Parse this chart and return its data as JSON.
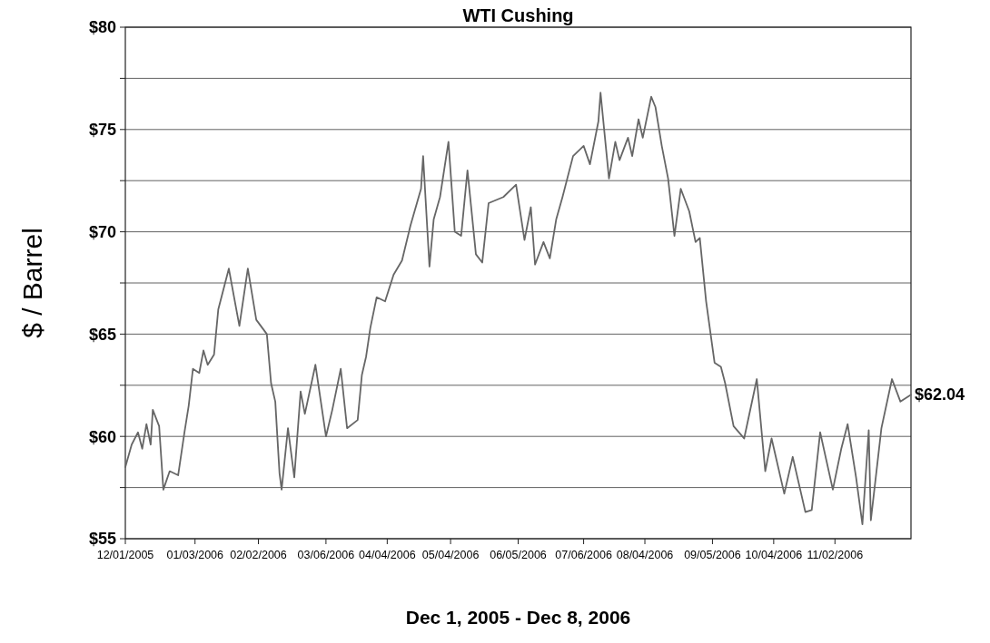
{
  "chart_data": {
    "type": "line",
    "title": "WTI Cushing",
    "xlabel": "Dec 1, 2005 - Dec 8, 2006",
    "ylabel": "$ / Barrel",
    "x": [
      "2005-12-01",
      "2005-12-04",
      "2005-12-07",
      "2005-12-09",
      "2005-12-11",
      "2005-12-13",
      "2005-12-14",
      "2005-12-17",
      "2005-12-19",
      "2005-12-22",
      "2005-12-26",
      "2005-12-29",
      "2005-12-31",
      "2006-01-02",
      "2006-01-05",
      "2006-01-07",
      "2006-01-09",
      "2006-01-12",
      "2006-01-14",
      "2006-01-19",
      "2006-01-24",
      "2006-01-28",
      "2006-02-01",
      "2006-02-06",
      "2006-02-08",
      "2006-02-10",
      "2006-02-12",
      "2006-02-13",
      "2006-02-16",
      "2006-02-19",
      "2006-02-22",
      "2006-02-24",
      "2006-03-01",
      "2006-03-06",
      "2006-03-09",
      "2006-03-13",
      "2006-03-16",
      "2006-03-21",
      "2006-03-23",
      "2006-03-25",
      "2006-03-27",
      "2006-03-30",
      "2006-04-03",
      "2006-04-07",
      "2006-04-11",
      "2006-04-15",
      "2006-04-20",
      "2006-04-21",
      "2006-04-24",
      "2006-04-26",
      "2006-04-29",
      "2006-05-03",
      "2006-05-06",
      "2006-05-09",
      "2006-05-12",
      "2006-05-16",
      "2006-05-19",
      "2006-05-22",
      "2006-05-29",
      "2006-06-04",
      "2006-06-08",
      "2006-06-11",
      "2006-06-13",
      "2006-06-17",
      "2006-06-20",
      "2006-06-23",
      "2006-06-26",
      "2006-07-01",
      "2006-07-06",
      "2006-07-09",
      "2006-07-13",
      "2006-07-14",
      "2006-07-18",
      "2006-07-21",
      "2006-07-23",
      "2006-07-27",
      "2006-07-29",
      "2006-08-01",
      "2006-08-03",
      "2006-08-07",
      "2006-08-09",
      "2006-08-12",
      "2006-08-15",
      "2006-08-18",
      "2006-08-21",
      "2006-08-25",
      "2006-08-28",
      "2006-08-30",
      "2006-09-02",
      "2006-09-06",
      "2006-09-09",
      "2006-09-11",
      "2006-09-15",
      "2006-09-20",
      "2006-09-26",
      "2006-09-30",
      "2006-10-03",
      "2006-10-09",
      "2006-10-13",
      "2006-10-19",
      "2006-10-22",
      "2006-10-26",
      "2006-11-01",
      "2006-11-05",
      "2006-11-08",
      "2006-11-12",
      "2006-11-15",
      "2006-11-18",
      "2006-11-19",
      "2006-11-24",
      "2006-11-29",
      "2006-12-03",
      "2006-12-08"
    ],
    "series": [
      {
        "color": "#666666",
        "values": [
          58.5,
          59.6,
          60.2,
          59.4,
          60.6,
          59.6,
          61.3,
          60.5,
          57.4,
          58.3,
          58.1,
          60.2,
          61.5,
          63.3,
          63.1,
          64.2,
          63.5,
          64.0,
          66.2,
          68.2,
          65.4,
          68.2,
          65.7,
          65.0,
          62.6,
          61.7,
          58.2,
          57.4,
          60.4,
          58.0,
          62.2,
          61.1,
          63.5,
          60.0,
          61.3,
          63.3,
          60.4,
          60.8,
          63.0,
          63.9,
          65.3,
          66.8,
          66.6,
          67.9,
          68.6,
          70.3,
          72.1,
          73.7,
          68.3,
          70.6,
          71.7,
          74.4,
          70.0,
          69.8,
          73.0,
          68.9,
          68.5,
          71.4,
          71.7,
          72.3,
          69.6,
          71.2,
          68.4,
          69.5,
          68.7,
          70.6,
          71.7,
          73.7,
          74.2,
          73.3,
          75.4,
          76.8,
          72.6,
          74.4,
          73.5,
          74.6,
          73.7,
          75.5,
          74.6,
          76.6,
          76.1,
          74.2,
          72.6,
          69.8,
          72.1,
          71.0,
          69.5,
          69.7,
          66.6,
          63.6,
          63.4,
          62.6,
          60.5,
          59.9,
          62.8,
          58.3,
          59.9,
          57.2,
          59.0,
          56.3,
          56.4,
          60.2,
          57.4,
          59.4,
          60.6,
          58.0,
          55.7,
          60.3,
          55.9,
          60.4,
          62.8,
          61.7,
          62.04
        ]
      }
    ],
    "xlim": [
      "2005-12-01",
      "2006-12-08"
    ],
    "xticks": [
      {
        "value": "2005-12-01",
        "label": "12/01/2005"
      },
      {
        "value": "2006-01-03",
        "label": "01/03/2006"
      },
      {
        "value": "2006-02-02",
        "label": "02/02/2006"
      },
      {
        "value": "2006-03-06",
        "label": "03/06/2006"
      },
      {
        "value": "2006-04-04",
        "label": "04/04/2006"
      },
      {
        "value": "2006-05-04",
        "label": "05/04/2006"
      },
      {
        "value": "2006-06-05",
        "label": "06/05/2006"
      },
      {
        "value": "2006-07-06",
        "label": "07/06/2006"
      },
      {
        "value": "2006-08-04",
        "label": "08/04/2006"
      },
      {
        "value": "2006-09-05",
        "label": "09/05/2006"
      },
      {
        "value": "2006-10-04",
        "label": "10/04/2006"
      },
      {
        "value": "2006-11-02",
        "label": "11/02/2006"
      }
    ],
    "ylim": [
      55,
      80
    ],
    "yticks": [
      {
        "value": 55,
        "label": "$55"
      },
      {
        "value": 57.5,
        "label": null
      },
      {
        "value": 60,
        "label": "$60"
      },
      {
        "value": 62.5,
        "label": null
      },
      {
        "value": 65,
        "label": "$65"
      },
      {
        "value": 67.5,
        "label": null
      },
      {
        "value": 70,
        "label": "$70"
      },
      {
        "value": 72.5,
        "label": null
      },
      {
        "value": 75,
        "label": "$75"
      },
      {
        "value": 77.5,
        "label": null
      },
      {
        "value": 80,
        "label": "$80"
      }
    ],
    "grid": "y",
    "marker": "none",
    "line_style": "solid",
    "annotations": [
      {
        "text": "$62.04",
        "x": "2006-12-08",
        "y": 62.04
      }
    ]
  }
}
